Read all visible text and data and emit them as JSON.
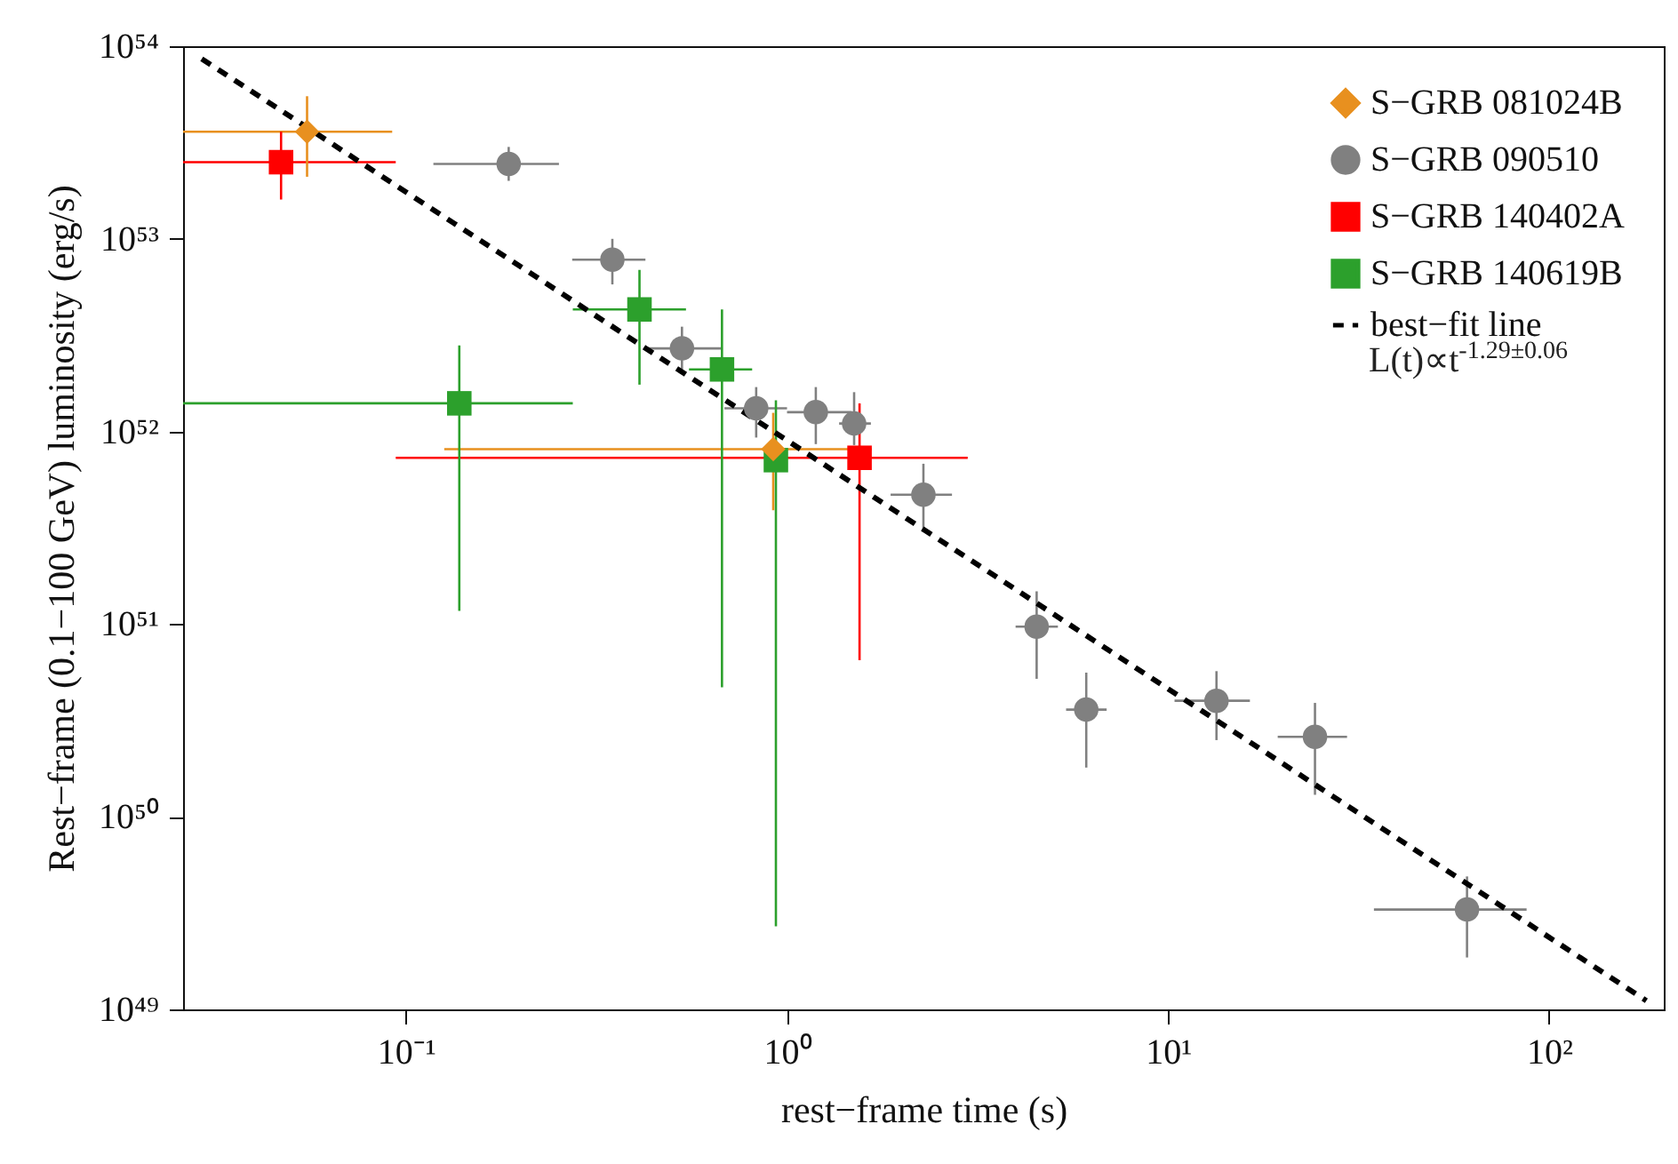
{
  "chart_data": {
    "type": "scatter",
    "xlabel": "rest−frame time (s)",
    "ylabel": "Rest−frame (0.1−100 GeV) luminosity (erg/s)",
    "log": "xy",
    "grid": false,
    "legend": "top right",
    "xlim": [
      0.026,
      200
    ],
    "ylim": [
      1e+49,
      1e+54
    ],
    "xticks": [
      {
        "value": 0.1,
        "label": "10⁻¹"
      },
      {
        "value": 1,
        "label": "10⁰"
      },
      {
        "value": 10,
        "label": "10¹"
      },
      {
        "value": 100,
        "label": "10²"
      }
    ],
    "yticks": [
      {
        "value": 1e+49,
        "label": "10⁴⁹"
      },
      {
        "value": 1e+50,
        "label": "10⁵⁰"
      },
      {
        "value": 1e+51,
        "label": "10⁵¹"
      },
      {
        "value": 1e+52,
        "label": "10⁵²"
      },
      {
        "value": 1e+53,
        "label": "10⁵³"
      },
      {
        "value": 1e+54,
        "label": "10⁵⁴"
      }
    ],
    "annotations": [
      "L(t)∝t$^{-1.29±0.06}$"
    ],
    "series": [
      {
        "name": "S−GRB 081024B",
        "type": "scatter",
        "marker": "diamond",
        "color": "#e8901f",
        "x": [
          0.055,
          0.92
        ],
        "values": [
          3.6e+53,
          8.1e+51
        ],
        "errors": [
          [
            2.1e+53,
            5.5e+53
          ],
          [
            3.9e+51,
            1.25e+52
          ]
        ],
        "xerrors": [
          [
            0.026,
            0.092
          ],
          [
            0.126,
            1.67
          ]
        ]
      },
      {
        "name": "S−GRB 090510",
        "type": "scatter",
        "marker": "circle",
        "color": "#808080",
        "x": [
          0.186,
          0.348,
          0.53,
          0.83,
          1.19,
          1.5,
          2.28,
          4.52,
          6.1,
          13.4,
          24.3,
          60.9
        ],
        "values": [
          2.45e+53,
          7.8e+52,
          2.7e+52,
          1.32e+52,
          1.26e+52,
          1.1e+52,
          4.7e+51,
          9.7e+50,
          3.6e+50,
          4e+50,
          2.6e+50,
          3.3e+49
        ],
        "errors": [
          [
            2e+53,
            3e+53
          ],
          [
            5.8e+52,
            1e+53
          ],
          [
            2.1e+52,
            3.5e+52
          ],
          [
            9.3e+51,
            1.7e+52
          ],
          [
            8.6e+51,
            1.7e+52
          ],
          [
            8.5e+51,
            1.6e+52
          ],
          [
            3e+51,
            6.8e+51
          ],
          [
            5.2e+50,
            1.48e+51
          ],
          [
            1.8e+50,
            5.6e+50
          ],
          [
            2.5e+50,
            5.7e+50
          ],
          [
            1.3e+50,
            3.9e+50
          ],
          [
            1.86e+49,
            4.9e+49
          ]
        ],
        "xerrors": [
          [
            0.118,
            0.252
          ],
          [
            0.273,
            0.425
          ],
          [
            0.423,
            0.673
          ],
          [
            0.685,
            1.0
          ],
          [
            1.0,
            1.48
          ],
          [
            1.37,
            1.66
          ],
          [
            1.87,
            2.71
          ],
          [
            3.98,
            5.14
          ],
          [
            5.4,
            6.9
          ],
          [
            10.4,
            16.4
          ],
          [
            19.4,
            29.5
          ],
          [
            34.7,
            87.3
          ]
        ]
      },
      {
        "name": "S−GRB 140402A",
        "type": "scatter",
        "marker": "square",
        "color": "#ff0000",
        "x": [
          0.047,
          1.55
        ],
        "values": [
          2.5e+53,
          7.3e+51
        ],
        "errors": [
          [
            1.6e+53,
            3.6e+53
          ],
          [
            6.5e+50,
            1.4e+52
          ]
        ],
        "xerrors": [
          [
            0.026,
            0.094
          ],
          [
            0.094,
            2.98
          ]
        ]
      },
      {
        "name": "S−GRB 140619B",
        "type": "scatter",
        "marker": "square",
        "color": "#2ca02c",
        "x": [
          0.138,
          0.41,
          0.675,
          0.935
        ],
        "values": [
          1.4e+52,
          4.3e+52,
          2.1e+52,
          7.1e+51
        ],
        "errors": [
          [
            1.17e+51,
            2.8e+52
          ],
          [
            1.75e+52,
            6.9e+52
          ],
          [
            4.7e+50,
            4.3e+52
          ],
          [
            2.7e+49,
            1.45e+52
          ]
        ],
        "xerrors": [
          [
            0.026,
            0.274
          ],
          [
            0.274,
            0.543
          ],
          [
            0.553,
            0.81
          ],
          null
        ]
      },
      {
        "name": "best−fit line",
        "type": "line",
        "line_style": "dashed",
        "color": "#000000",
        "x": [
          0.0291,
          180
        ],
        "values": [
          8.6e+53,
          1.11e+49
        ]
      }
    ]
  }
}
